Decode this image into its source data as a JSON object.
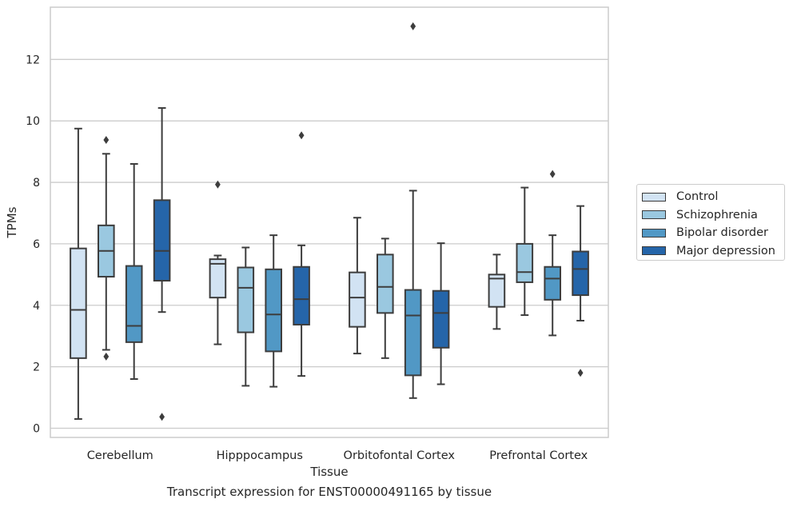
{
  "chart_data": {
    "type": "box",
    "xlabel": "Tissue",
    "ylabel": "TPMs",
    "caption": "Transcript expression for ENST00000491165 by tissue",
    "ylim": [
      -0.3,
      13.7
    ],
    "yticks": [
      0,
      2,
      4,
      6,
      8,
      10,
      12
    ],
    "grid": "horizontal",
    "legend_position": "right",
    "categories": [
      "Cerebellum",
      "Hipppocampus",
      "Orbitofontal Cortex",
      "Prefrontal Cortex"
    ],
    "series": [
      {
        "name": "Control",
        "color": "#d2e3f3",
        "boxes": [
          {
            "whisker_low": 0.3,
            "q1": 2.28,
            "median": 3.85,
            "q3": 5.85,
            "whisker_high": 9.75,
            "outliers": []
          },
          {
            "whisker_low": 2.73,
            "q1": 4.25,
            "median": 5.35,
            "q3": 5.5,
            "whisker_high": 5.62,
            "outliers": [
              7.93
            ]
          },
          {
            "whisker_low": 2.43,
            "q1": 3.3,
            "median": 4.25,
            "q3": 5.07,
            "whisker_high": 6.85,
            "outliers": []
          },
          {
            "whisker_low": 3.23,
            "q1": 3.95,
            "median": 4.87,
            "q3": 5.0,
            "whisker_high": 5.65,
            "outliers": []
          }
        ]
      },
      {
        "name": "Schizophrenia",
        "color": "#9ac8e0",
        "boxes": [
          {
            "whisker_low": 2.55,
            "q1": 4.93,
            "median": 5.77,
            "q3": 6.6,
            "whisker_high": 8.93,
            "outliers": [
              9.38,
              2.33
            ]
          },
          {
            "whisker_low": 1.38,
            "q1": 3.12,
            "median": 4.57,
            "q3": 5.23,
            "whisker_high": 5.88,
            "outliers": []
          },
          {
            "whisker_low": 2.28,
            "q1": 3.75,
            "median": 4.6,
            "q3": 5.65,
            "whisker_high": 6.17,
            "outliers": []
          },
          {
            "whisker_low": 3.68,
            "q1": 4.75,
            "median": 5.08,
            "q3": 6.0,
            "whisker_high": 7.83,
            "outliers": []
          }
        ]
      },
      {
        "name": "Bipolar disorder",
        "color": "#5198c5",
        "boxes": [
          {
            "whisker_low": 1.6,
            "q1": 2.8,
            "median": 3.33,
            "q3": 5.28,
            "whisker_high": 8.6,
            "outliers": []
          },
          {
            "whisker_low": 1.35,
            "q1": 2.5,
            "median": 3.7,
            "q3": 5.17,
            "whisker_high": 6.28,
            "outliers": []
          },
          {
            "whisker_low": 0.98,
            "q1": 1.72,
            "median": 3.67,
            "q3": 4.5,
            "whisker_high": 7.73,
            "outliers": [
              13.08
            ]
          },
          {
            "whisker_low": 3.02,
            "q1": 4.18,
            "median": 4.87,
            "q3": 5.25,
            "whisker_high": 6.28,
            "outliers": [
              8.27
            ]
          }
        ]
      },
      {
        "name": "Major depression",
        "color": "#2565a9",
        "boxes": [
          {
            "whisker_low": 3.78,
            "q1": 4.8,
            "median": 5.77,
            "q3": 7.42,
            "whisker_high": 10.42,
            "outliers": [
              0.37
            ]
          },
          {
            "whisker_low": 1.7,
            "q1": 3.37,
            "median": 4.2,
            "q3": 5.25,
            "whisker_high": 5.95,
            "outliers": [
              9.53
            ]
          },
          {
            "whisker_low": 1.43,
            "q1": 2.62,
            "median": 3.75,
            "q3": 4.47,
            "whisker_high": 6.02,
            "outliers": []
          },
          {
            "whisker_low": 3.5,
            "q1": 4.33,
            "median": 5.18,
            "q3": 5.75,
            "whisker_high": 7.23,
            "outliers": [
              1.8
            ]
          }
        ]
      }
    ]
  }
}
